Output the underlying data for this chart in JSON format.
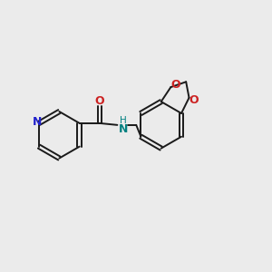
{
  "bg_color": "#ebebeb",
  "bond_color": "#1a1a1a",
  "bond_width": 1.4,
  "N_color": "#2222cc",
  "O_color": "#cc2222",
  "NH_color": "#008080",
  "label_fontsize": 8.5,
  "fig_bg": "#ebebeb",
  "xlim": [
    0,
    12
  ],
  "ylim": [
    0,
    10
  ]
}
